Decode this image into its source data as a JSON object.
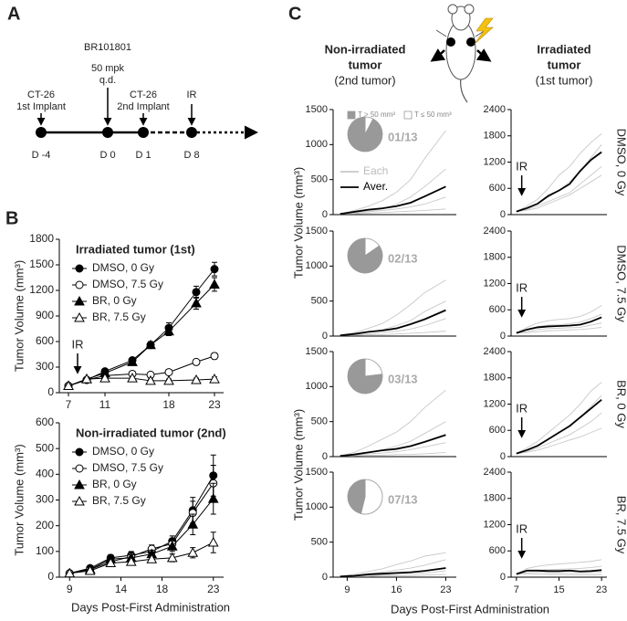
{
  "figure": {
    "panel_labels": [
      "A",
      "B",
      "C"
    ],
    "timeline": [
      {
        "label": "D -4",
        "notes": [
          "CT-26",
          "1st Implant"
        ]
      },
      {
        "label": "D 0",
        "notes": [
          "BR101801",
          "50 mpk",
          "q.d."
        ]
      },
      {
        "label": "D 1",
        "notes": [
          "CT-26",
          "2nd Implant"
        ]
      },
      {
        "label": "D 8",
        "notes": [
          "IR"
        ]
      }
    ],
    "mouse_left": [
      "Non-irradiated",
      "tumor",
      "(2nd tumor)"
    ],
    "mouse_right": [
      "Irradiated",
      "tumor",
      "(1st tumor)"
    ],
    "c_xlabel": "Days Post-First Administration"
  },
  "chart_data": [
    {
      "type": "line",
      "title": "Irradiated tumor (1st)",
      "ylabel": "Tumor Volume (mm³)",
      "x": [
        7,
        9,
        11,
        14,
        16,
        18,
        21,
        23
      ],
      "xlim": [
        6,
        24
      ],
      "xticks": [
        7,
        11,
        18,
        23
      ],
      "ylim": [
        0,
        1800
      ],
      "yticks": [
        0,
        300,
        600,
        900,
        1200,
        1500,
        1800
      ],
      "legend": true,
      "annotations": [
        {
          "text": "IR",
          "x": 8
        }
      ],
      "series": [
        {
          "name": "DMSO, 0 Gy",
          "color": "#000",
          "marker": "circle",
          "filled": true,
          "values": [
            80,
            150,
            250,
            380,
            560,
            760,
            1180,
            1450
          ],
          "errors": [
            10,
            15,
            20,
            30,
            40,
            60,
            70,
            80
          ]
        },
        {
          "name": "DMSO, 7.5 Gy",
          "color": "#000",
          "marker": "circle",
          "filled": false,
          "values": [
            80,
            150,
            200,
            220,
            210,
            240,
            360,
            430
          ],
          "errors": [
            10,
            15,
            20,
            20,
            20,
            25,
            30,
            35
          ]
        },
        {
          "name": "BR, 0 Gy",
          "color": "#000",
          "marker": "triangle",
          "filled": true,
          "values": [
            80,
            160,
            230,
            360,
            560,
            720,
            1050,
            1270
          ],
          "errors": [
            10,
            15,
            20,
            30,
            40,
            50,
            70,
            80
          ]
        },
        {
          "name": "BR, 7.5 Gy",
          "color": "#000",
          "marker": "triangle",
          "filled": false,
          "values": [
            80,
            160,
            170,
            170,
            140,
            140,
            150,
            160
          ],
          "errors": [
            10,
            15,
            20,
            20,
            20,
            20,
            20,
            25
          ]
        }
      ]
    },
    {
      "type": "line",
      "title": "Non-irradiated tumor (2nd)",
      "ylabel": "Tumor Volume (mm³)",
      "xlabel": "Days Post-First Administration",
      "x": [
        9,
        11,
        13,
        15,
        17,
        19,
        21,
        23
      ],
      "xlim": [
        8,
        24
      ],
      "xticks": [
        9,
        14,
        18,
        23
      ],
      "ylim": [
        0,
        600
      ],
      "yticks": [
        0,
        100,
        200,
        300,
        400,
        500,
        600
      ],
      "legend": true,
      "series": [
        {
          "name": "DMSO, 0 Gy",
          "color": "#000",
          "marker": "circle",
          "filled": true,
          "values": [
            15,
            35,
            75,
            85,
            100,
            140,
            260,
            395
          ],
          "errors": [
            3,
            8,
            12,
            15,
            15,
            20,
            50,
            80
          ]
        },
        {
          "name": "DMSO, 7.5 Gy",
          "color": "#000",
          "marker": "circle",
          "filled": false,
          "values": [
            15,
            30,
            60,
            80,
            110,
            130,
            250,
            365
          ],
          "errors": [
            3,
            8,
            12,
            15,
            15,
            20,
            45,
            70
          ]
        },
        {
          "name": "BR, 0 Gy",
          "color": "#000",
          "marker": "triangle",
          "filled": true,
          "values": [
            15,
            30,
            70,
            75,
            90,
            120,
            205,
            305
          ],
          "errors": [
            3,
            8,
            12,
            12,
            15,
            20,
            40,
            60
          ]
        },
        {
          "name": "BR, 7.5 Gy",
          "color": "#000",
          "marker": "triangle",
          "filled": false,
          "values": [
            15,
            25,
            55,
            60,
            70,
            75,
            95,
            135
          ],
          "errors": [
            3,
            6,
            10,
            10,
            12,
            15,
            20,
            40
          ]
        }
      ]
    },
    {
      "type": "line",
      "ylabel": "Tumor Volume (mm³)",
      "x": [
        8,
        10,
        12,
        14,
        16,
        18,
        20,
        23
      ],
      "xlim": [
        7,
        24.5
      ],
      "ylim": [
        0,
        1500
      ],
      "yticks": [
        0,
        500,
        1000,
        1500
      ],
      "legend": true,
      "pie": {
        "values": [
          12,
          1
        ],
        "colors": [
          "#999999",
          "#ffffff"
        ],
        "label": "01/13"
      },
      "pie_legend": [
        "T > 50 mm³",
        "T ≤ 50 mm³"
      ],
      "series": [
        {
          "name": "Each",
          "color": "#c8c8c8",
          "values": [
            [
              10,
              60,
              120,
              200,
              320,
              500,
              800,
              1200
            ],
            [
              10,
              30,
              50,
              80,
              150,
              250,
              400,
              650
            ],
            [
              10,
              20,
              40,
              60,
              80,
              110,
              150,
              250
            ],
            [
              10,
              10,
              20,
              30,
              40,
              50,
              60,
              80
            ]
          ]
        },
        {
          "name": "Aver.",
          "color": "#000",
          "values": [
            10,
            40,
            70,
            90,
            120,
            170,
            260,
            400
          ]
        }
      ]
    },
    {
      "type": "line",
      "side_label": "DMSO, 0 Gy",
      "x": [
        7,
        9,
        11,
        13,
        15,
        17,
        19,
        21,
        23
      ],
      "xlim": [
        6,
        24
      ],
      "ylim": [
        0,
        2400
      ],
      "yticks": [
        0,
        600,
        1200,
        1800,
        2400
      ],
      "annotations": [
        {
          "text": "IR",
          "x": 8
        }
      ],
      "series": [
        {
          "name": "Each",
          "color": "#c8c8c8",
          "values": [
            [
              70,
              200,
              350,
              600,
              900,
              1100,
              1400,
              1650,
              1850
            ],
            [
              70,
              150,
              250,
              400,
              550,
              750,
              1000,
              1300,
              1600
            ],
            [
              70,
              120,
              200,
              300,
              400,
              500,
              700,
              900,
              1100
            ],
            [
              70,
              100,
              150,
              250,
              350,
              450,
              600,
              750,
              900
            ]
          ]
        },
        {
          "name": "Aver.",
          "color": "#000",
          "values": [
            70,
            150,
            250,
            430,
            550,
            700,
            1000,
            1250,
            1430
          ]
        }
      ]
    },
    {
      "type": "line",
      "x": [
        8,
        10,
        12,
        14,
        16,
        18,
        20,
        23
      ],
      "xlim": [
        7,
        24.5
      ],
      "ylim": [
        0,
        1500
      ],
      "yticks": [
        0,
        500,
        1000,
        1500
      ],
      "pie": {
        "values": [
          11,
          2
        ],
        "colors": [
          "#999999",
          "#ffffff"
        ],
        "label": "02/13"
      },
      "series": [
        {
          "name": "Each",
          "color": "#c8c8c8",
          "values": [
            [
              10,
              50,
              110,
              180,
              300,
              450,
              620,
              800
            ],
            [
              10,
              30,
              60,
              90,
              150,
              220,
              350,
              500
            ],
            [
              10,
              20,
              30,
              50,
              70,
              100,
              150,
              250
            ],
            [
              10,
              10,
              20,
              20,
              30,
              40,
              50,
              70
            ]
          ]
        },
        {
          "name": "Aver.",
          "color": "#000",
          "values": [
            10,
            30,
            60,
            80,
            110,
            170,
            240,
            370
          ]
        }
      ]
    },
    {
      "type": "line",
      "side_label": "DMSO, 7.5 Gy",
      "x": [
        7,
        9,
        11,
        13,
        15,
        17,
        19,
        21,
        23
      ],
      "xlim": [
        6,
        24
      ],
      "ylim": [
        0,
        2400
      ],
      "yticks": [
        0,
        600,
        1200,
        1800,
        2400
      ],
      "annotations": [
        {
          "text": "IR",
          "x": 8
        }
      ],
      "series": [
        {
          "name": "Each",
          "color": "#c8c8c8",
          "values": [
            [
              70,
              200,
              300,
              350,
              380,
              400,
              450,
              550,
              700
            ],
            [
              70,
              150,
              220,
              250,
              260,
              280,
              320,
              400,
              500
            ],
            [
              70,
              100,
              150,
              170,
              180,
              190,
              200,
              250,
              300
            ],
            [
              70,
              80,
              100,
              120,
              130,
              140,
              150,
              170,
              200
            ]
          ]
        },
        {
          "name": "Aver.",
          "color": "#000",
          "values": [
            70,
            150,
            200,
            220,
            230,
            240,
            260,
            330,
            430
          ]
        }
      ]
    },
    {
      "type": "line",
      "ylabel": "Tumor Volume (mm³)",
      "x": [
        8,
        10,
        12,
        14,
        16,
        18,
        20,
        23
      ],
      "xlim": [
        7,
        24.5
      ],
      "ylim": [
        0,
        1500
      ],
      "yticks": [
        0,
        500,
        1000,
        1500
      ],
      "pie": {
        "values": [
          10,
          3
        ],
        "colors": [
          "#999999",
          "#ffffff"
        ],
        "label": "03/13"
      },
      "series": [
        {
          "name": "Each",
          "color": "#c8c8c8",
          "values": [
            [
              10,
              60,
              150,
              250,
              350,
              500,
              700,
              950
            ],
            [
              10,
              30,
              60,
              100,
              150,
              220,
              330,
              500
            ],
            [
              10,
              20,
              40,
              50,
              70,
              100,
              140,
              200
            ],
            [
              10,
              10,
              20,
              20,
              30,
              30,
              40,
              60
            ]
          ]
        },
        {
          "name": "Aver.",
          "color": "#000",
          "values": [
            10,
            30,
            60,
            90,
            110,
            150,
            210,
            310
          ]
        }
      ]
    },
    {
      "type": "line",
      "side_label": "BR, 0 Gy",
      "x": [
        7,
        9,
        11,
        13,
        15,
        17,
        19,
        21,
        23
      ],
      "xlim": [
        6,
        24
      ],
      "ylim": [
        0,
        2400
      ],
      "yticks": [
        0,
        600,
        1200,
        1800,
        2400
      ],
      "annotations": [
        {
          "text": "IR",
          "x": 8
        }
      ],
      "series": [
        {
          "name": "Each",
          "color": "#c8c8c8",
          "values": [
            [
              70,
              200,
              350,
              550,
              750,
              950,
              1200,
              1500,
              1700
            ],
            [
              70,
              150,
              250,
              400,
              550,
              700,
              900,
              1150,
              1400
            ],
            [
              70,
              120,
              200,
              300,
              400,
              500,
              650,
              800,
              1000
            ],
            [
              70,
              100,
              150,
              220,
              300,
              380,
              450,
              550,
              650
            ]
          ]
        },
        {
          "name": "Aver.",
          "color": "#000",
          "values": [
            70,
            150,
            250,
            400,
            550,
            700,
            900,
            1100,
            1300
          ]
        }
      ]
    },
    {
      "type": "line",
      "x": [
        8,
        10,
        12,
        14,
        16,
        18,
        20,
        23
      ],
      "xlim": [
        7,
        24.5
      ],
      "xticks": [
        9,
        16,
        23
      ],
      "ylim": [
        0,
        1500
      ],
      "yticks": [
        0,
        500,
        1000,
        1500
      ],
      "pie": {
        "values": [
          6,
          7
        ],
        "colors": [
          "#999999",
          "#ffffff"
        ],
        "label": "07/13"
      },
      "series": [
        {
          "name": "Each",
          "color": "#c8c8c8",
          "values": [
            [
              10,
              40,
              80,
              120,
              180,
              230,
              300,
              350
            ],
            [
              10,
              20,
              50,
              70,
              100,
              130,
              170,
              250
            ],
            [
              10,
              10,
              20,
              30,
              40,
              50,
              60,
              90
            ],
            [
              10,
              10,
              10,
              20,
              20,
              20,
              30,
              40
            ]
          ]
        },
        {
          "name": "Aver.",
          "color": "#000",
          "values": [
            10,
            20,
            40,
            50,
            60,
            70,
            90,
            130
          ]
        }
      ]
    },
    {
      "type": "line",
      "side_label": "BR, 7.5 Gy",
      "x": [
        7,
        9,
        11,
        13,
        15,
        17,
        19,
        21,
        23
      ],
      "xlim": [
        6,
        24
      ],
      "xticks": [
        7,
        15,
        23
      ],
      "ylim": [
        0,
        2400
      ],
      "yticks": [
        0,
        600,
        1200,
        1800,
        2400
      ],
      "annotations": [
        {
          "text": "IR",
          "x": 8
        }
      ],
      "series": [
        {
          "name": "Each",
          "color": "#c8c8c8",
          "values": [
            [
              70,
              200,
              250,
              280,
              300,
              320,
              340,
              360,
              400
            ],
            [
              70,
              150,
              160,
              170,
              180,
              190,
              200,
              220,
              250
            ],
            [
              70,
              100,
              110,
              100,
              100,
              90,
              90,
              100,
              110
            ],
            [
              70,
              80,
              70,
              60,
              60,
              50,
              50,
              50,
              60
            ]
          ]
        },
        {
          "name": "Aver.",
          "color": "#000",
          "values": [
            70,
            150,
            150,
            140,
            140,
            150,
            130,
            140,
            160
          ]
        }
      ]
    }
  ]
}
